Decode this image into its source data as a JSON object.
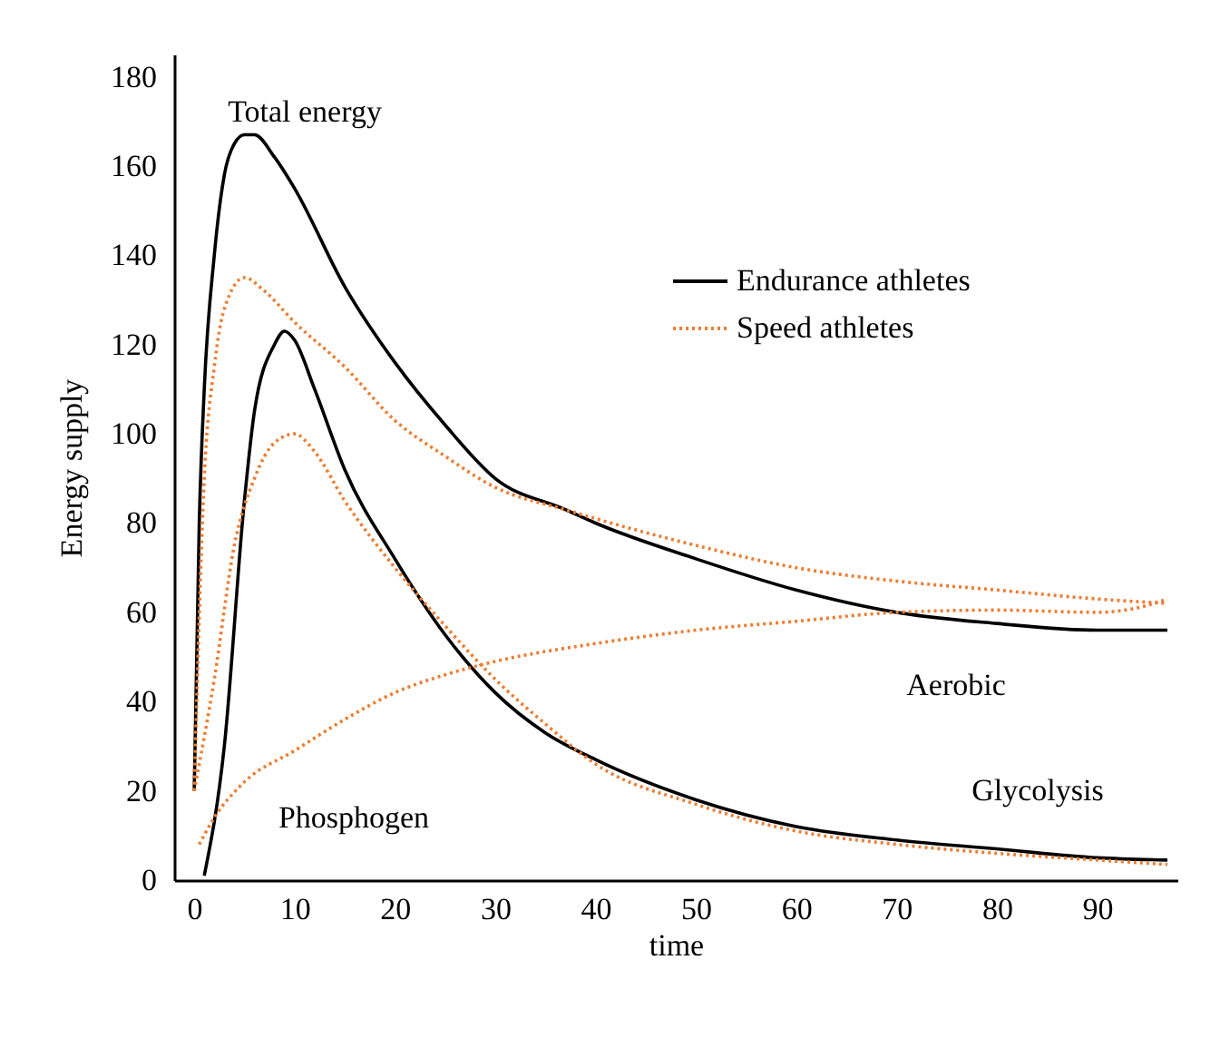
{
  "chart_data": {
    "type": "line",
    "xlabel": "time",
    "ylabel": "Energy supply",
    "xlim": [
      -2,
      98
    ],
    "ylim": [
      0,
      185
    ],
    "xticks": [
      0,
      10,
      20,
      30,
      40,
      50,
      60,
      70,
      80,
      90
    ],
    "yticks": [
      0,
      20,
      40,
      60,
      80,
      100,
      120,
      140,
      160,
      180
    ],
    "grid": false,
    "legend": "top right",
    "marker": "none",
    "series": [
      {
        "name": "Endurance athletes",
        "color": "#000000",
        "line_style": "solid",
        "x": [
          0,
          0.5,
          1,
          2,
          3,
          4,
          5,
          6,
          8,
          10,
          15,
          20,
          25,
          30,
          37,
          40,
          50,
          60,
          70,
          80,
          90,
          97
        ],
        "values": [
          20,
          80,
          110,
          140,
          158,
          165,
          167,
          167,
          162,
          155,
          133,
          116,
          102,
          90,
          83,
          80,
          72,
          65,
          60,
          57.5,
          56,
          56
        ]
      },
      {
        "name": "Speed athletes",
        "color": "#ed7d31",
        "line_style": "dotted",
        "x": [
          0,
          1,
          2,
          3,
          5,
          7,
          10,
          15,
          20,
          25,
          30,
          37,
          40,
          50,
          60,
          70,
          80,
          90,
          97
        ],
        "values": [
          20,
          90,
          115,
          128,
          135,
          132,
          125,
          115,
          103,
          95,
          88,
          83,
          81,
          75,
          70,
          67,
          65,
          63,
          62
        ]
      },
      {
        "color": "#000000",
        "line_style": "solid",
        "x": [
          1,
          3,
          5,
          6,
          8,
          9,
          10,
          12,
          15,
          20,
          25,
          30,
          35,
          40,
          50,
          60,
          70,
          80,
          90,
          97
        ],
        "values": [
          1,
          30,
          85,
          105,
          120,
          123,
          121,
          110,
          92,
          72,
          55,
          42,
          33,
          27,
          18,
          12,
          9,
          7,
          5,
          4.5
        ]
      },
      {
        "color": "#ed7d31",
        "line_style": "dotted",
        "x": [
          0,
          2,
          4,
          6,
          8,
          10,
          12,
          15,
          20,
          25,
          30,
          35,
          40,
          50,
          60,
          70,
          80,
          90,
          97
        ],
        "values": [
          20,
          45,
          75,
          90,
          98,
          100,
          96,
          85,
          70,
          57,
          45,
          35,
          26,
          17,
          11,
          8,
          6,
          4.5,
          3.5
        ]
      },
      {
        "color": "#ed7d31",
        "line_style": "dotted",
        "x": [
          0.5,
          2,
          5,
          10,
          15,
          20,
          25,
          30,
          40,
          50,
          60,
          70,
          80,
          90,
          94,
          97
        ],
        "values": [
          8,
          14,
          22,
          29,
          36,
          42,
          46,
          49,
          53,
          56,
          58,
          60,
          60.5,
          60,
          61,
          63
        ]
      }
    ],
    "annotations": [
      "Total energy",
      "Phosphogen",
      "Aerobic",
      "Glycolysis"
    ]
  }
}
